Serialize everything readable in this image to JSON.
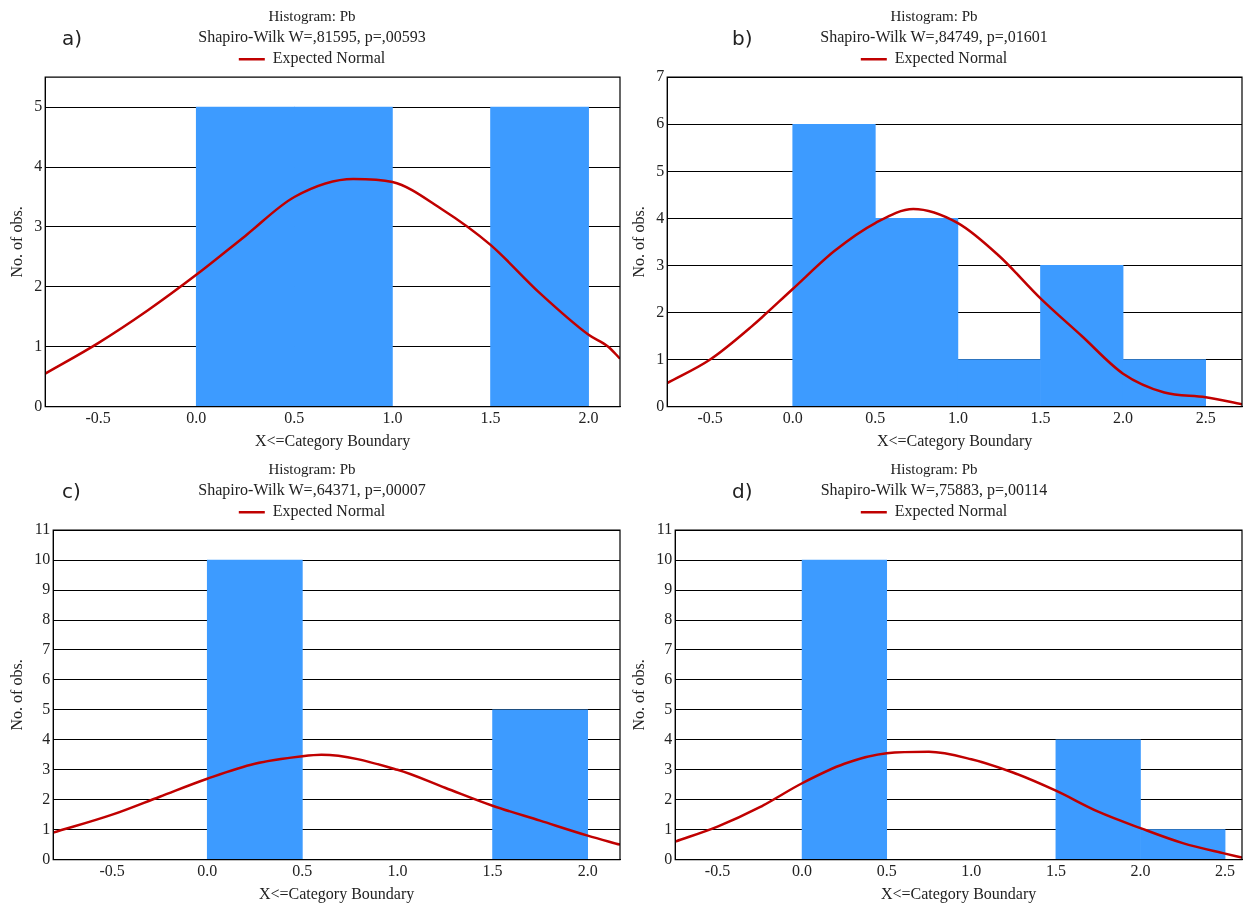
{
  "chart_data": [
    {
      "type": "histogram",
      "title": "Histogram: Pb",
      "subtitle": "Shapiro-Wilk W=,81595, p=,00593",
      "xlabel": "X<=Category Boundary",
      "ylabel": "No. of obs.",
      "annotations": [
        "a)"
      ],
      "legend": "top",
      "grid": "y",
      "xlim": [
        -0.77,
        2.16
      ],
      "xticks": [
        -0.5,
        {
          "value": 0,
          "label": "0.0"
        },
        0.5,
        {
          "value": 1,
          "label": "1.0"
        },
        1.5,
        {
          "value": 2,
          "label": "2.0"
        }
      ],
      "ylim": [
        0,
        5.5
      ],
      "yticks": [
        0,
        1,
        2,
        3,
        4,
        5
      ],
      "series": [
        {
          "type": "histogram",
          "color": "#3d9bff",
          "bins": [
            0,
            0.5,
            1,
            1.5,
            2
          ],
          "values": [
            5,
            5,
            0,
            5
          ]
        },
        {
          "type": "line",
          "name": "Expected Normal",
          "color": "#c00000",
          "x": [
            -0.77,
            -0.5,
            -0.25,
            0,
            0.25,
            0.5,
            0.8,
            1,
            1.25,
            1.5,
            1.75,
            2,
            2.1,
            2.16
          ],
          "values": [
            0.55,
            1.06,
            1.6,
            2.2,
            2.85,
            3.5,
            3.8,
            3.75,
            3.3,
            2.7,
            1.9,
            1.2,
            1.0,
            0.8
          ]
        }
      ]
    },
    {
      "type": "histogram",
      "title": "Histogram: Pb",
      "subtitle": "Shapiro-Wilk W=,84749, p=,01601",
      "xlabel": "X<=Category Boundary",
      "ylabel": "No. of obs.",
      "annotations": [
        "b)"
      ],
      "legend": "top",
      "grid": "y",
      "xlim": [
        -0.76,
        2.72
      ],
      "xticks": [
        -0.5,
        {
          "value": 0,
          "label": "0.0"
        },
        0.5,
        {
          "value": 1,
          "label": "1.0"
        },
        1.5,
        {
          "value": 2,
          "label": "2.0"
        },
        2.5
      ],
      "ylim": [
        0,
        7
      ],
      "yticks": [
        0,
        1,
        2,
        3,
        4,
        5,
        6,
        7
      ],
      "series": [
        {
          "type": "histogram",
          "color": "#3d9bff",
          "bins": [
            0,
            0.5,
            1,
            1.5,
            2,
            2.5
          ],
          "values": [
            6,
            4,
            1,
            3,
            1
          ]
        },
        {
          "type": "line",
          "name": "Expected Normal",
          "color": "#c00000",
          "x": [
            -0.76,
            -0.5,
            -0.25,
            0,
            0.25,
            0.5,
            0.73,
            1,
            1.25,
            1.5,
            1.75,
            2,
            2.25,
            2.5,
            2.72
          ],
          "values": [
            0.5,
            1.0,
            1.7,
            2.5,
            3.3,
            3.9,
            4.2,
            3.9,
            3.2,
            2.3,
            1.5,
            0.7,
            0.3,
            0.2,
            0.05
          ]
        }
      ]
    },
    {
      "type": "histogram",
      "title": "Histogram: Pb",
      "subtitle": "Shapiro-Wilk W=,64371, p=,00007",
      "xlabel": "X<=Category Boundary",
      "ylabel": "No. of obs.",
      "annotations": [
        "c)"
      ],
      "legend": "top",
      "grid": "y",
      "xlim": [
        -0.81,
        2.17
      ],
      "xticks": [
        -0.5,
        {
          "value": 0,
          "label": "0.0"
        },
        0.5,
        {
          "value": 1,
          "label": "1.0"
        },
        1.5,
        {
          "value": 2,
          "label": "2.0"
        }
      ],
      "ylim": [
        0,
        11
      ],
      "yticks": [
        0,
        1,
        2,
        3,
        4,
        5,
        6,
        7,
        8,
        9,
        10,
        11
      ],
      "series": [
        {
          "type": "histogram",
          "color": "#3d9bff",
          "bins": [
            0,
            0.5,
            1,
            1.5,
            2
          ],
          "values": [
            10,
            0,
            0,
            5
          ]
        },
        {
          "type": "line",
          "name": "Expected Normal",
          "color": "#c00000",
          "x": [
            -0.81,
            -0.5,
            -0.25,
            0,
            0.25,
            0.5,
            0.6,
            1,
            1.25,
            1.5,
            1.75,
            2,
            2.17
          ],
          "values": [
            0.9,
            1.5,
            2.1,
            2.7,
            3.2,
            3.45,
            3.5,
            3.0,
            2.4,
            1.8,
            1.3,
            0.8,
            0.5
          ]
        }
      ]
    },
    {
      "type": "histogram",
      "title": "Histogram: Pb",
      "subtitle": "Shapiro-Wilk W=,75883, p=,00114",
      "xlabel": "X<=Category Boundary",
      "ylabel": "No. of obs.",
      "annotations": [
        "d)"
      ],
      "legend": "top",
      "grid": "y",
      "xlim": [
        -0.75,
        2.6
      ],
      "xticks": [
        -0.5,
        {
          "value": 0,
          "label": "0.0"
        },
        0.5,
        {
          "value": 1,
          "label": "1.0"
        },
        1.5,
        {
          "value": 2,
          "label": "2.0"
        },
        2.5
      ],
      "ylim": [
        0,
        11
      ],
      "yticks": [
        0,
        1,
        2,
        3,
        4,
        5,
        6,
        7,
        8,
        9,
        10,
        11
      ],
      "series": [
        {
          "type": "histogram",
          "color": "#3d9bff",
          "bins": [
            0,
            0.5,
            1,
            1.5,
            2,
            2.5
          ],
          "values": [
            10,
            0,
            0,
            4,
            1
          ]
        },
        {
          "type": "line",
          "name": "Expected Normal",
          "color": "#c00000",
          "x": [
            -0.75,
            -0.5,
            -0.25,
            0,
            0.25,
            0.5,
            0.75,
            1,
            1.25,
            1.5,
            1.75,
            2,
            2.25,
            2.5,
            2.6
          ],
          "values": [
            0.6,
            1.1,
            1.75,
            2.55,
            3.2,
            3.55,
            3.6,
            3.35,
            2.9,
            2.3,
            1.6,
            1.05,
            0.55,
            0.2,
            0.07
          ]
        }
      ]
    }
  ]
}
